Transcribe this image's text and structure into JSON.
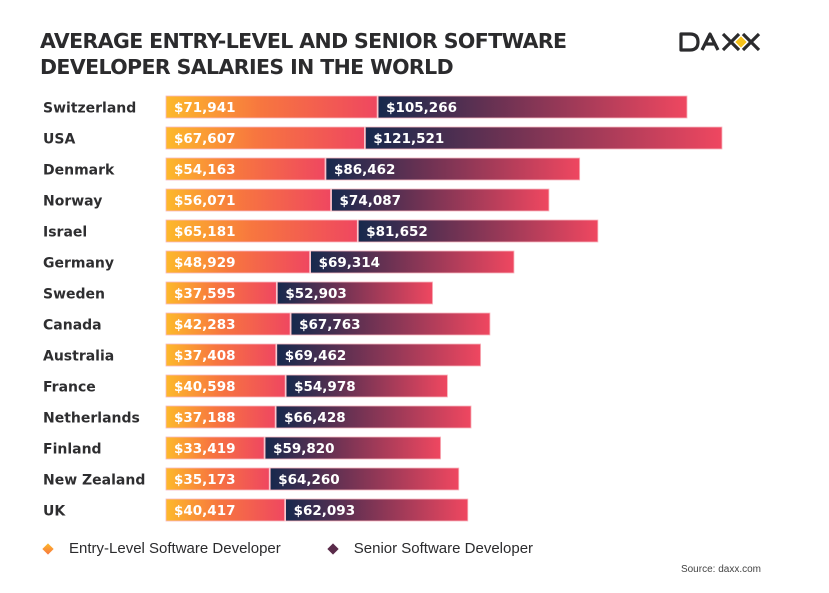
{
  "header": {
    "title_line1": "AVERAGE ENTRY-LEVEL AND SENIOR SOFTWARE",
    "title_line2": "DEVELOPER SALARIES IN THE WORLD",
    "logo_text": "DAXX"
  },
  "colors": {
    "entry_start": "#fdb92b",
    "entry_mid": "#f7763f",
    "entry_end": "#ef4760",
    "senior_start": "#16294d",
    "senior_mid": "#7a3352",
    "senior_end": "#ef4760",
    "logo_dark": "#2b2b2d",
    "logo_accent": "#f6c21a"
  },
  "chart_data": {
    "type": "bar",
    "orientation": "horizontal",
    "stacked": true,
    "title": "AVERAGE ENTRY-LEVEL AND SENIOR SOFTWARE DEVELOPER SALARIES IN THE WORLD",
    "xlabel": "",
    "ylabel": "",
    "grid": false,
    "legend_position": "bottom-left",
    "categories": [
      "Switzerland",
      "USA",
      "Denmark",
      "Norway",
      "Israel",
      "Germany",
      "Sweden",
      "Canada",
      "Australia",
      "France",
      "Netherlands",
      "Finland",
      "New Zealand",
      "UK"
    ],
    "series": [
      {
        "name": "Entry-Level Software Developer",
        "values": [
          71941,
          67607,
          54163,
          56071,
          65181,
          48929,
          37595,
          42283,
          37408,
          40598,
          37188,
          33419,
          35173,
          40417
        ]
      },
      {
        "name": "Senior Software Developer",
        "values": [
          105266,
          121521,
          86462,
          74087,
          81652,
          69314,
          52903,
          67763,
          69462,
          54978,
          66428,
          59820,
          64260,
          62093
        ]
      }
    ],
    "labels": {
      "entry": [
        "$71,941",
        "$67,607",
        "$54,163",
        "$56,071",
        "$65,181",
        "$48,929",
        "$37,595",
        "$42,283",
        "$37,408",
        "$40,598",
        "$37,188",
        "$33,419",
        "$35,173",
        "$40,417"
      ],
      "senior": [
        "$105,266",
        "$121,521",
        "$86,462",
        "$74,087",
        "$81,652",
        "$69,314",
        "$52,903",
        "$67,763",
        "$69,462",
        "$54,978",
        "$66,428",
        "$59,820",
        "$64,260",
        "$62,093"
      ]
    },
    "xlim": [
      0,
      189128
    ]
  },
  "legend": {
    "entry_label": "Entry-Level Software Developer",
    "senior_label": "Senior Software Developer"
  },
  "footer": {
    "source": "Source: daxx.com"
  }
}
